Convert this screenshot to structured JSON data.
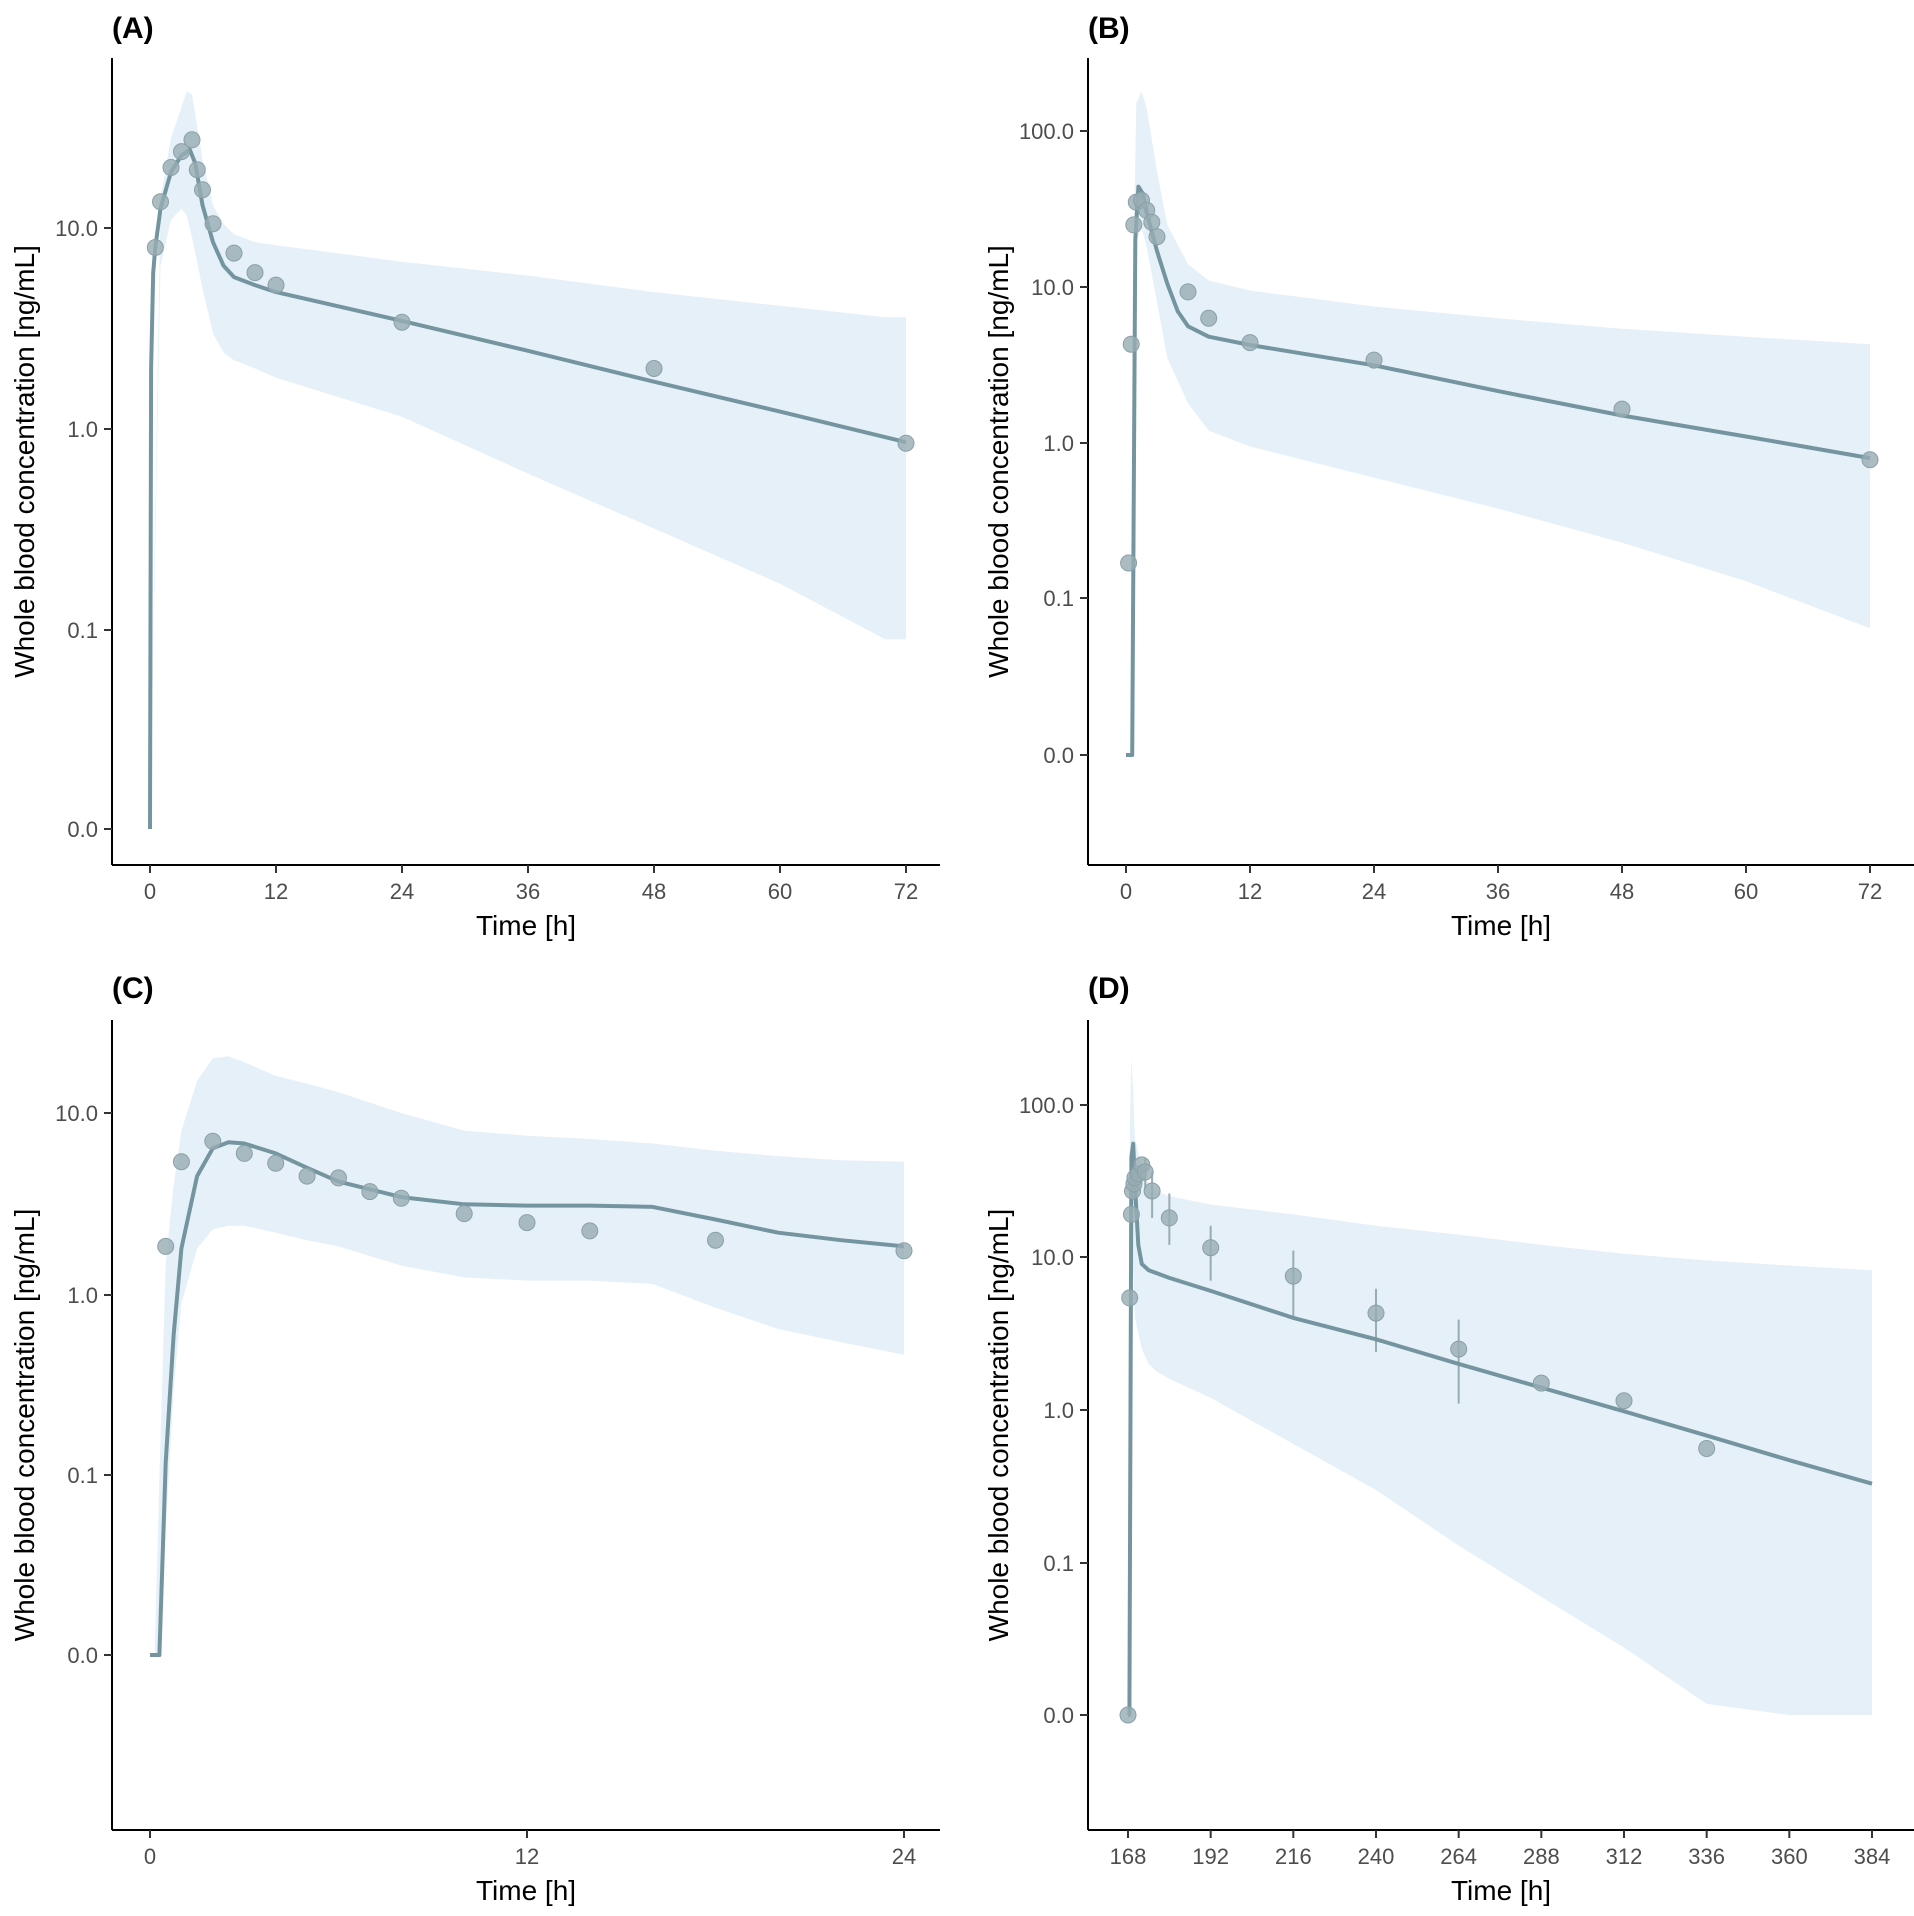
{
  "colors": {
    "band": "#e6f0f8",
    "line": "#7495a0",
    "point": "#97acb3",
    "point_stroke": "#8aa0a8",
    "axis": "#000000"
  },
  "chart_data": [
    {
      "type": "line",
      "panel": "(A)",
      "xlabel": "Time [h]",
      "ylabel": "Whole blood concentration [ng/mL]",
      "xlim": [
        0,
        72
      ],
      "x_ticks": [
        0,
        12,
        24,
        36,
        48,
        60,
        72
      ],
      "y_ticks": [
        {
          "label": "0.0",
          "ref": "0"
        },
        {
          "label": "0.1",
          "ref": "0.1"
        },
        {
          "label": "1.0",
          "ref": "1"
        },
        {
          "label": "10.0",
          "ref": "10"
        }
      ],
      "series": [
        {
          "name": "prediction band",
          "type": "area",
          "x": [
            0,
            1,
            2,
            3,
            3.5,
            4,
            5,
            6,
            7,
            8,
            10,
            12,
            24,
            36,
            48,
            60,
            70,
            72
          ],
          "lower": [
            0.0,
            6.5,
            11,
            12.5,
            11.5,
            9,
            5,
            3,
            2.4,
            2.2,
            2.0,
            1.8,
            1.15,
            0.6,
            0.32,
            0.17,
            0.09,
            0.09
          ],
          "upper": [
            0.0,
            14,
            28,
            40,
            48,
            46,
            22,
            13,
            10.5,
            9.3,
            8.5,
            8.2,
            6.8,
            5.8,
            4.8,
            4.1,
            3.6,
            3.6
          ]
        },
        {
          "name": "model prediction",
          "type": "line",
          "x": [
            0.0,
            0.1,
            0.3,
            0.5,
            1,
            2,
            3,
            3.8,
            4.3,
            5,
            6,
            7,
            8,
            10,
            12,
            24,
            36,
            48,
            60,
            72
          ],
          "values": [
            0.0,
            2.0,
            6.0,
            8.0,
            12.5,
            19,
            23,
            24.5,
            21,
            13,
            8.5,
            6.5,
            5.7,
            5.2,
            4.8,
            3.45,
            2.45,
            1.72,
            1.22,
            0.86
          ]
        },
        {
          "name": "observed",
          "type": "scatter",
          "x": [
            0.5,
            1,
            2,
            3,
            4,
            4.5,
            5,
            6,
            8,
            10,
            12,
            24,
            48,
            72
          ],
          "values": [
            8,
            13.5,
            20,
            24,
            27.5,
            19.5,
            15.5,
            10.5,
            7.5,
            6,
            5.2,
            3.4,
            2.0,
            0.85
          ]
        }
      ]
    },
    {
      "type": "line",
      "panel": "(B)",
      "xlabel": "Time [h]",
      "ylabel": "Whole blood concentration [ng/mL]",
      "xlim": [
        0,
        72
      ],
      "x_ticks": [
        0,
        12,
        24,
        36,
        48,
        60,
        72
      ],
      "y_ticks": [
        {
          "label": "0.0",
          "ref": "0"
        },
        {
          "label": "0.1",
          "ref": "0.1"
        },
        {
          "label": "1.0",
          "ref": "1"
        },
        {
          "label": "10.0",
          "ref": "10"
        },
        {
          "label": "100.0",
          "ref": "100"
        }
      ],
      "series": [
        {
          "name": "prediction band",
          "type": "area",
          "x": [
            0,
            0.5,
            0.75,
            1,
            1.5,
            2,
            3,
            4,
            6,
            8,
            12,
            24,
            36,
            48,
            60,
            72
          ],
          "lower": [
            0.0,
            0.0,
            3,
            20,
            24,
            18,
            8,
            3.5,
            1.8,
            1.2,
            0.95,
            0.6,
            0.38,
            0.23,
            0.13,
            0.065
          ],
          "upper": [
            0.0,
            0.0,
            20,
            150,
            180,
            140,
            55,
            25,
            14,
            11,
            9.5,
            7.5,
            6.3,
            5.4,
            4.8,
            4.3
          ]
        },
        {
          "name": "model prediction",
          "type": "line",
          "x": [
            0,
            0.6,
            0.6,
            0.9,
            1.2,
            1.6,
            2,
            3,
            4,
            5,
            6,
            8,
            12,
            24,
            36,
            48,
            60,
            72
          ],
          "values": [
            0.0,
            0.0,
            0.01,
            20,
            44,
            40,
            30,
            17,
            10.5,
            7,
            5.6,
            4.8,
            4.25,
            3.15,
            2.15,
            1.5,
            1.1,
            0.8
          ],
          "tail": {
            "label": "0.0",
            "note": "step up near zero"
          }
        },
        {
          "name": "observed",
          "type": "scatter",
          "x": [
            0.25,
            0.5,
            0.75,
            1,
            1.5,
            2,
            2.5,
            3,
            6,
            8,
            12,
            24,
            48,
            72
          ],
          "values": [
            0.17,
            4.3,
            25,
            35,
            36,
            31,
            26,
            21,
            9.3,
            6.3,
            4.4,
            3.4,
            1.65,
            0.78
          ]
        }
      ]
    },
    {
      "type": "line",
      "panel": "(C)",
      "xlabel": "Time [h]",
      "ylabel": "Whole blood concentration [ng/mL]",
      "xlim": [
        0,
        24
      ],
      "x_ticks": [
        0,
        12,
        24
      ],
      "y_ticks": [
        {
          "label": "0.0",
          "ref": "0"
        },
        {
          "label": "0.1",
          "ref": "0.1"
        },
        {
          "label": "1.0",
          "ref": "1"
        },
        {
          "label": "10.0",
          "ref": "10"
        }
      ],
      "series": [
        {
          "name": "prediction band",
          "type": "area",
          "x": [
            0,
            0.15,
            0.3,
            0.5,
            0.75,
            1,
            1.5,
            2,
            2.5,
            3,
            4,
            5,
            6,
            8,
            10,
            12,
            14,
            16,
            18,
            20,
            22,
            24
          ],
          "lower": [
            0.0,
            0.0,
            0.0,
            0.05,
            0.3,
            0.9,
            1.8,
            2.3,
            2.4,
            2.4,
            2.2,
            2.0,
            1.85,
            1.45,
            1.25,
            1.2,
            1.2,
            1.15,
            0.85,
            0.65,
            0.55,
            0.47
          ],
          "upper": [
            0.0,
            0.01,
            0.1,
            1.5,
            4,
            8,
            15,
            20,
            20.5,
            19,
            16,
            14.5,
            13,
            10,
            8,
            7.5,
            7.2,
            6.8,
            6.2,
            5.8,
            5.5,
            5.4
          ]
        },
        {
          "name": "model prediction",
          "type": "line",
          "x": [
            0,
            0.2,
            0.3,
            0.5,
            0.75,
            1,
            1.5,
            2,
            2.5,
            3,
            4,
            5,
            6,
            8,
            10,
            12,
            14,
            16,
            18,
            20,
            22,
            24
          ],
          "values": [
            0.0,
            0.0,
            0.01,
            0.12,
            0.6,
            1.8,
            4.5,
            6.4,
            6.9,
            6.8,
            6.0,
            5.0,
            4.2,
            3.45,
            3.15,
            3.1,
            3.1,
            3.05,
            2.6,
            2.2,
            2.0,
            1.85
          ]
        },
        {
          "name": "observed",
          "type": "scatter",
          "x": [
            0.5,
            1,
            2,
            3,
            4,
            5,
            6,
            7,
            8,
            10,
            12,
            14,
            18,
            24
          ],
          "values": [
            1.85,
            5.4,
            7.0,
            6.0,
            5.3,
            4.5,
            4.4,
            3.7,
            3.4,
            2.8,
            2.5,
            2.25,
            2.0,
            1.75
          ]
        }
      ]
    },
    {
      "type": "line",
      "panel": "(D)",
      "xlabel": "Time [h]",
      "ylabel": "Whole blood concentration [ng/mL]",
      "xlim": [
        168,
        384
      ],
      "x_ticks": [
        168,
        192,
        216,
        240,
        264,
        288,
        312,
        336,
        360,
        384
      ],
      "y_ticks": [
        {
          "label": "0.0",
          "ref": "0"
        },
        {
          "label": "0.1",
          "ref": "0.1"
        },
        {
          "label": "1.0",
          "ref": "1"
        },
        {
          "label": "10.0",
          "ref": "10"
        },
        {
          "label": "100.0",
          "ref": "100"
        }
      ],
      "series": [
        {
          "name": "prediction band",
          "type": "area",
          "x": [
            168,
            168.5,
            169,
            169.5,
            170,
            172,
            174,
            176,
            180,
            192,
            216,
            240,
            264,
            288,
            312,
            336,
            360,
            384
          ],
          "lower": [
            0.0,
            0.0,
            5,
            8,
            4,
            2.5,
            2.0,
            1.8,
            1.6,
            1.2,
            0.6,
            0.3,
            0.13,
            0.06,
            0.028,
            0.012,
            0.004,
            0.0006
          ],
          "upper": [
            0.0,
            60,
            200,
            120,
            60,
            38,
            30,
            27,
            25,
            22,
            19,
            16,
            14,
            12,
            10.5,
            9.5,
            8.8,
            8.2
          ]
        },
        {
          "name": "model prediction",
          "type": "line",
          "x": [
            168,
            168.4,
            168.4,
            169,
            169.5,
            170,
            171,
            172,
            174,
            180,
            192,
            216,
            240,
            264,
            288,
            312,
            336,
            360,
            384
          ],
          "values": [
            0.0,
            0.0,
            0.01,
            45,
            55,
            30,
            12,
            9,
            8.2,
            7.3,
            6.0,
            4.0,
            2.9,
            2.0,
            1.4,
            0.98,
            0.68,
            0.47,
            0.33
          ]
        },
        {
          "name": "observed",
          "type": "scatter",
          "x": [
            168,
            168.5,
            169,
            169.3,
            169.7,
            170,
            171,
            172,
            173,
            175,
            180,
            192,
            216,
            240,
            264,
            288,
            312,
            336
          ],
          "values": [
            0.0,
            5.4,
            19,
            27,
            30,
            33,
            35,
            40,
            36,
            27,
            18,
            11.5,
            7.5,
            4.3,
            2.5,
            1.5,
            1.15,
            0.56
          ],
          "error_low": [
            null,
            null,
            null,
            null,
            null,
            null,
            null,
            null,
            28,
            18,
            12,
            7,
            4,
            2.4,
            1.1,
            null,
            null,
            null
          ],
          "error_high": [
            null,
            null,
            null,
            null,
            null,
            null,
            null,
            null,
            44,
            36,
            26,
            16,
            11,
            6.2,
            3.9,
            null,
            null,
            null
          ]
        }
      ]
    }
  ]
}
